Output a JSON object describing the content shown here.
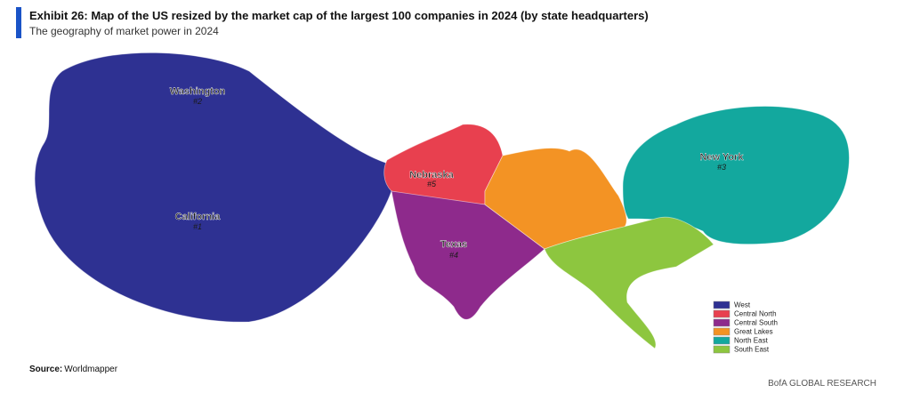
{
  "header": {
    "title": "Exhibit 26: Map of the US resized by the market cap of the largest 100 companies in 2024 (by state headquarters)",
    "subtitle": "The geography of market power in 2024"
  },
  "map": {
    "regions": [
      {
        "label": "Washington",
        "rank": "#2"
      },
      {
        "label": "California",
        "rank": "#1"
      },
      {
        "label": "Nebraska",
        "rank": "#5"
      },
      {
        "label": "Texas",
        "rank": "#4"
      },
      {
        "label": "New York",
        "rank": "#3"
      }
    ]
  },
  "legend": {
    "items": [
      {
        "name": "West",
        "color": "#2e3192"
      },
      {
        "name": "Central North",
        "color": "#e8404f"
      },
      {
        "name": "Central South",
        "color": "#8e2a8c"
      },
      {
        "name": "Great Lakes",
        "color": "#f39324"
      },
      {
        "name": "North East",
        "color": "#13a89e"
      },
      {
        "name": "South East",
        "color": "#8dc63f"
      }
    ]
  },
  "source": {
    "label": "Source:",
    "text": "Worldmapper"
  },
  "footer": "BofA GLOBAL RESEARCH"
}
